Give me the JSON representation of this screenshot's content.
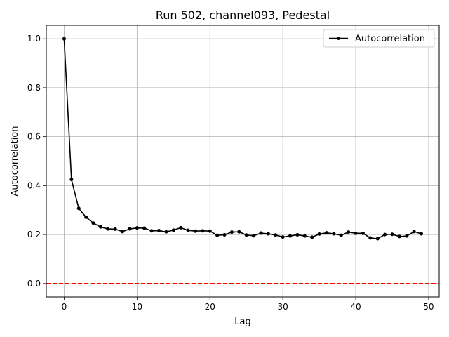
{
  "chart_data": {
    "type": "line",
    "title": "Run 502, channel093, Pedestal",
    "xlabel": "Lag",
    "ylabel": "Autocorrelation",
    "xlim": [
      -2.45,
      51.45
    ],
    "ylim": [
      -0.055,
      1.055
    ],
    "xticks": [
      0,
      10,
      20,
      30,
      40,
      50
    ],
    "yticks": [
      0.0,
      0.2,
      0.4,
      0.6,
      0.8,
      1.0
    ],
    "xtick_labels": [
      "0",
      "10",
      "20",
      "30",
      "40",
      "50"
    ],
    "ytick_labels": [
      "0.0",
      "0.2",
      "0.4",
      "0.6",
      "0.8",
      "1.0"
    ],
    "grid": true,
    "legend_position": "upper right",
    "series": [
      {
        "name": "Autocorrelation",
        "color": "#000000",
        "marker": "dot",
        "x": [
          0,
          1,
          2,
          3,
          4,
          5,
          6,
          7,
          8,
          9,
          10,
          11,
          12,
          13,
          14,
          15,
          16,
          17,
          18,
          19,
          20,
          21,
          22,
          23,
          24,
          25,
          26,
          27,
          28,
          29,
          30,
          31,
          32,
          33,
          34,
          35,
          36,
          37,
          38,
          39,
          40,
          41,
          42,
          43,
          44,
          45,
          46,
          47,
          48,
          49
        ],
        "values": [
          1.0,
          0.425,
          0.307,
          0.271,
          0.247,
          0.231,
          0.223,
          0.222,
          0.212,
          0.223,
          0.227,
          0.226,
          0.215,
          0.216,
          0.211,
          0.218,
          0.228,
          0.217,
          0.214,
          0.215,
          0.214,
          0.197,
          0.199,
          0.21,
          0.211,
          0.198,
          0.195,
          0.206,
          0.203,
          0.198,
          0.19,
          0.194,
          0.199,
          0.194,
          0.189,
          0.202,
          0.207,
          0.203,
          0.197,
          0.21,
          0.205,
          0.205,
          0.186,
          0.183,
          0.2,
          0.201,
          0.192,
          0.194,
          0.212,
          0.203
        ]
      }
    ],
    "reference_lines": [
      {
        "axis": "y",
        "value": 0.0,
        "style": "dashed",
        "color": "#ff0000"
      }
    ]
  }
}
